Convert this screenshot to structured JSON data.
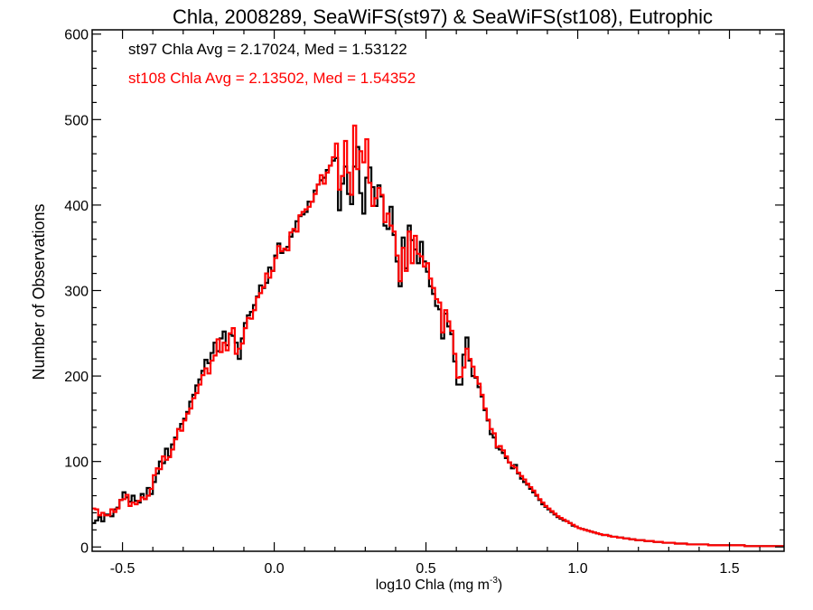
{
  "chart_data": {
    "type": "histogram",
    "title": "Chla, 2008289, SeaWiFS(st97) & SeaWiFS(st108), Eutrophic",
    "xlabel_main": "log10 Chla (mg m",
    "xlabel_sup": "-3",
    "xlabel_end": ")",
    "ylabel": "Number of Observations",
    "xlim": [
      -0.6,
      1.68
    ],
    "ylim": [
      -5,
      605
    ],
    "x_ticks": [
      -0.5,
      0.0,
      0.5,
      1.0,
      1.5
    ],
    "x_tick_labels": [
      "-0.5",
      "0.0",
      "0.5",
      "1.0",
      "1.5"
    ],
    "y_ticks": [
      0,
      100,
      200,
      300,
      400,
      500,
      600
    ],
    "y_tick_labels": [
      "0",
      "100",
      "200",
      "300",
      "400",
      "500",
      "600"
    ],
    "bin_width": 0.01,
    "x_start": -0.6,
    "annotations": [
      {
        "text": "st97 Chla Avg = 2.17024, Med = 1.53122",
        "color": "#000000"
      },
      {
        "text": "st108 Chla Avg = 2.13502, Med = 1.54352",
        "color": "#ff0000"
      }
    ],
    "series": [
      {
        "name": "st97",
        "color": "#000000",
        "values": [
          28,
          31,
          35,
          30,
          38,
          38,
          36,
          44,
          46,
          55,
          64,
          58,
          53,
          60,
          54,
          52,
          62,
          56,
          69,
          62,
          76,
          86,
          100,
          98,
          115,
          106,
          120,
          128,
          138,
          144,
          150,
          158,
          170,
          178,
          189,
          196,
          206,
          219,
          215,
          227,
          239,
          229,
          244,
          252,
          236,
          249,
          247,
          239,
          220,
          244,
          262,
          271,
          275,
          283,
          293,
          306,
          303,
          309,
          327,
          323,
          341,
          355,
          344,
          348,
          351,
          363,
          370,
          381,
          387,
          389,
          392,
          404,
          404,
          417,
          424,
          429,
          432,
          441,
          446,
          452,
          455,
          394,
          425,
          445,
          413,
          401,
          445,
          468,
          414,
          390,
          432,
          444,
          421,
          399,
          423,
          410,
          376,
          372,
          398,
          365,
          334,
          305,
          362,
          326,
          376,
          359,
          348,
          332,
          357,
          334,
          322,
          305,
          296,
          282,
          278,
          244,
          273,
          258,
          249,
          217,
          190,
          190,
          225,
          245,
          218,
          200,
          198,
          187,
          176,
          160,
          148,
          132,
          128,
          116,
          114,
          110,
          104,
          99,
          92,
          96,
          86,
          80,
          76,
          73,
          68,
          64,
          60,
          55,
          50,
          47,
          44,
          41,
          38,
          35,
          33,
          31,
          30,
          28,
          25,
          24,
          22,
          21,
          20,
          19,
          18,
          17,
          16,
          15,
          14,
          14,
          13,
          12,
          12,
          11,
          11,
          10,
          10,
          9,
          9,
          8,
          8,
          8,
          7,
          7,
          7,
          6,
          6,
          6,
          5,
          5,
          5,
          5,
          4,
          4,
          4,
          4,
          3,
          3,
          3,
          3,
          3,
          3,
          3,
          2,
          2,
          2,
          2,
          2,
          2,
          2,
          2,
          2,
          2,
          2,
          2,
          1,
          1,
          1,
          1,
          1,
          1,
          1,
          1,
          1,
          1,
          1,
          1,
          1,
          1,
          1,
          1,
          1,
          1,
          1,
          1
        ]
      },
      {
        "name": "st108",
        "color": "#ff0000",
        "values": [
          45,
          44,
          37,
          40,
          37,
          37,
          44,
          41,
          45,
          55,
          56,
          61,
          48,
          52,
          50,
          54,
          58,
          56,
          60,
          68,
          84,
          92,
          91,
          106,
          102,
          105,
          114,
          126,
          138,
          136,
          148,
          156,
          162,
          174,
          180,
          190,
          201,
          209,
          203,
          218,
          224,
          243,
          228,
          239,
          230,
          250,
          256,
          226,
          232,
          238,
          256,
          268,
          267,
          277,
          292,
          297,
          304,
          320,
          315,
          323,
          338,
          352,
          346,
          349,
          347,
          368,
          372,
          369,
          388,
          392,
          395,
          398,
          404,
          413,
          424,
          435,
          425,
          438,
          446,
          456,
          472,
          418,
          434,
          475,
          438,
          412,
          493,
          442,
          463,
          450,
          477,
          426,
          399,
          408,
          420,
          412,
          380,
          390,
          376,
          369,
          341,
          311,
          350,
          323,
          369,
          332,
          364,
          343,
          340,
          328,
          332,
          314,
          303,
          290,
          286,
          251,
          277,
          264,
          253,
          226,
          198,
          199,
          210,
          232,
          220,
          211,
          199,
          191,
          178,
          162,
          149,
          138,
          133,
          117,
          118,
          113,
          106,
          99,
          95,
          93,
          87,
          83,
          79,
          74,
          70,
          66,
          61,
          56,
          52,
          48,
          45,
          42,
          39,
          36,
          34,
          32,
          30,
          28,
          26,
          24,
          22,
          21,
          20,
          19,
          18,
          17,
          16,
          15,
          14,
          14,
          13,
          12,
          12,
          11,
          11,
          10,
          10,
          9,
          9,
          8,
          8,
          8,
          7,
          7,
          7,
          6,
          6,
          6,
          5,
          5,
          5,
          5,
          4,
          4,
          4,
          4,
          3,
          3,
          3,
          3,
          3,
          3,
          3,
          2,
          2,
          2,
          2,
          2,
          2,
          2,
          2,
          2,
          2,
          2,
          2,
          1,
          1,
          1,
          1,
          1,
          1,
          1,
          1,
          1,
          1,
          1,
          1,
          1,
          1,
          1,
          1,
          1,
          1,
          1,
          1
        ]
      }
    ]
  }
}
